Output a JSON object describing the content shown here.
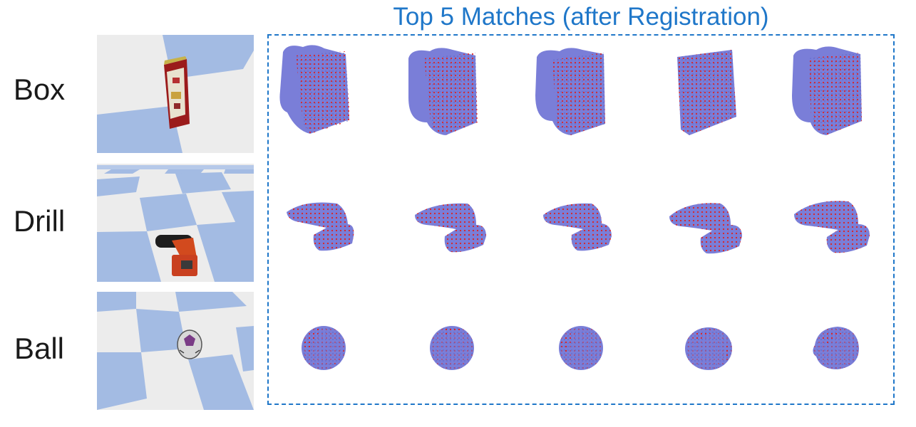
{
  "title": "Top 5 Matches (after Registration)",
  "colors": {
    "title": "#1f77c9",
    "dashed_border": "#1f77c9",
    "mesh": "#7a7ed8",
    "points": "#e0201c",
    "floor_blue": "#a3bbe3",
    "floor_light": "#ececec"
  },
  "rows": [
    {
      "label": "Box",
      "object": "cereal-box",
      "match_count": 5
    },
    {
      "label": "Drill",
      "object": "power-drill",
      "match_count": 5
    },
    {
      "label": "Ball",
      "object": "soccer-ball",
      "match_count": 5
    }
  ]
}
